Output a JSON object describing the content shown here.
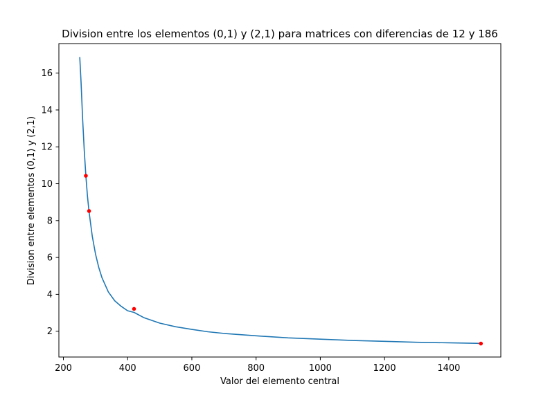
{
  "chart_data": {
    "type": "line",
    "title": "Division entre los elementos (0,1) y (2,1) para matrices con diferencias de 12 y 186",
    "xlabel": "Valor del elemento central",
    "ylabel": "Division entre elementos (0,1) y (2,1)",
    "xlim": [
      186,
      1562
    ],
    "ylim": [
      0.6,
      17.6
    ],
    "xticks": [
      200,
      400,
      600,
      800,
      1000,
      1200,
      1400
    ],
    "yticks": [
      2,
      4,
      6,
      8,
      10,
      12,
      14,
      16
    ],
    "grid": false,
    "series": [
      {
        "kind": "line",
        "color": "#1f77b4",
        "x": [
          251,
          255,
          260,
          265,
          270,
          275,
          280,
          290,
          300,
          310,
          320,
          340,
          360,
          380,
          400,
          420,
          450,
          500,
          550,
          600,
          650,
          700,
          800,
          900,
          1000,
          1100,
          1200,
          1300,
          1400,
          1500
        ],
        "y": [
          16.87,
          15.53,
          13.49,
          11.81,
          10.43,
          9.32,
          8.47,
          7.15,
          6.19,
          5.47,
          4.91,
          4.13,
          3.65,
          3.35,
          3.11,
          3.02,
          2.74,
          2.44,
          2.24,
          2.1,
          1.97,
          1.88,
          1.75,
          1.64,
          1.57,
          1.5,
          1.45,
          1.4,
          1.37,
          1.34
        ]
      },
      {
        "kind": "points",
        "color": "#ff0000",
        "x": [
          270,
          280,
          420,
          1500
        ],
        "y": [
          10.43,
          8.52,
          3.21,
          1.33
        ]
      }
    ]
  }
}
